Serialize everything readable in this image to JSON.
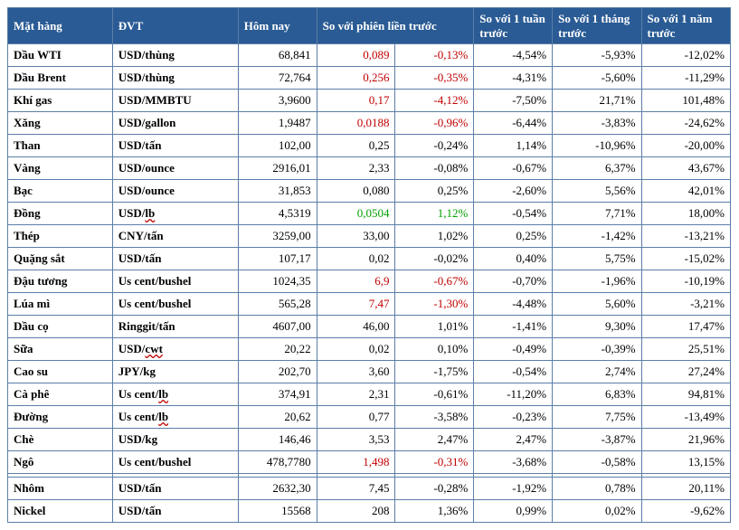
{
  "columns": {
    "c0": "Mặt hàng",
    "c1": "ĐVT",
    "c2": "Hôm nay",
    "c3": "So với phiên liền trước",
    "c4": "So với 1 tuần trước",
    "c5": "So với 1 tháng trước",
    "c6": "So với 1 năm trước"
  },
  "rows": [
    {
      "name": "Dầu WTI",
      "unit": "USD/thùng",
      "today": "68,841",
      "d1": "0,089",
      "d1c": "neg",
      "d2": "-0,13%",
      "d2c": "neg",
      "w": "-4,54%",
      "m": "-5,93%",
      "y": "-12,02%"
    },
    {
      "name": "Dầu Brent",
      "unit": "USD/thùng",
      "today": "72,764",
      "d1": "0,256",
      "d1c": "neg",
      "d2": "-0,35%",
      "d2c": "neg",
      "w": "-4,31%",
      "m": "-5,60%",
      "y": "-11,29%"
    },
    {
      "name": "Khí gas",
      "unit": "USD/MMBTU",
      "today": "3,9600",
      "d1": "0,17",
      "d1c": "neg",
      "d2": "-4,12%",
      "d2c": "neg",
      "w": "-7,50%",
      "m": "21,71%",
      "y": "101,48%"
    },
    {
      "name": "Xăng",
      "unit": "USD/gallon",
      "today": "1,9487",
      "d1": "0,0188",
      "d1c": "neg",
      "d2": "-0,96%",
      "d2c": "neg",
      "w": "-6,44%",
      "m": "-3,83%",
      "y": "-24,62%"
    },
    {
      "name": "Than",
      "unit": "USD/tấn",
      "today": "102,00",
      "d1": "0,25",
      "d1c": "",
      "d2": "-0,24%",
      "d2c": "",
      "w": "1,14%",
      "m": "-10,96%",
      "y": "-20,00%"
    },
    {
      "name": "Vàng",
      "unit": "USD/ounce",
      "today": "2916,01",
      "d1": "2,33",
      "d1c": "",
      "d2": "-0,08%",
      "d2c": "",
      "w": "-0,67%",
      "m": "6,37%",
      "y": "43,67%"
    },
    {
      "name": "Bạc",
      "unit": "USD/ounce",
      "today": "31,853",
      "d1": "0,080",
      "d1c": "",
      "d2": "0,25%",
      "d2c": "",
      "w": "-2,60%",
      "m": "5,56%",
      "y": "42,01%"
    },
    {
      "name": "Đồng",
      "unit": "USD/lb",
      "unitWavy": true,
      "today": "4,5319",
      "d1": "0,0504",
      "d1c": "pos",
      "d2": "1,12%",
      "d2c": "pos",
      "w": "-0,54%",
      "m": "7,71%",
      "y": "18,00%"
    },
    {
      "name": "Thép",
      "unit": "CNY/tấn",
      "today": "3259,00",
      "d1": "33,00",
      "d1c": "",
      "d2": "1,02%",
      "d2c": "",
      "w": "0,25%",
      "m": "-1,42%",
      "y": "-13,21%"
    },
    {
      "name": "Quặng sắt",
      "unit": "USD/tấn",
      "today": "107,17",
      "d1": "0,02",
      "d1c": "",
      "d2": "-0,02%",
      "d2c": "",
      "w": "0,40%",
      "m": "5,75%",
      "y": "-15,02%"
    },
    {
      "name": "Đậu tương",
      "unit": "Us cent/bushel",
      "today": "1024,35",
      "d1": "6,9",
      "d1c": "neg",
      "d2": "-0,67%",
      "d2c": "neg",
      "w": "-0,70%",
      "m": "-1,96%",
      "y": "-10,19%"
    },
    {
      "name": "Lúa mì",
      "unit": "Us cent/bushel",
      "today": "565,28",
      "d1": "7,47",
      "d1c": "neg",
      "d2": "-1,30%",
      "d2c": "neg",
      "w": "-4,48%",
      "m": "5,60%",
      "y": "-3,21%"
    },
    {
      "name": "Dầu cọ",
      "unit": "Ringgit/tấn",
      "today": "4607,00",
      "d1": "46,00",
      "d1c": "",
      "d2": "1,01%",
      "d2c": "",
      "w": "-1,41%",
      "m": "9,30%",
      "y": "17,47%"
    },
    {
      "name": "Sữa",
      "unit": "USD/cwt",
      "unitWavy": true,
      "today": "20,22",
      "d1": "0,02",
      "d1c": "",
      "d2": "0,10%",
      "d2c": "",
      "w": "-0,49%",
      "m": "-0,39%",
      "y": "25,51%"
    },
    {
      "name": "Cao su",
      "unit": "JPY/kg",
      "today": "202,70",
      "d1": "3,60",
      "d1c": "",
      "d2": "-1,75%",
      "d2c": "",
      "w": "-0,54%",
      "m": "2,74%",
      "y": "27,24%"
    },
    {
      "name": "Cà phê",
      "unit": "Us cent/lb",
      "unitWavy": true,
      "today": "374,91",
      "d1": "2,31",
      "d1c": "",
      "d2": "-0,61%",
      "d2c": "",
      "w": "-11,20%",
      "m": "6,83%",
      "y": "94,81%"
    },
    {
      "name": "Đường",
      "unit": "Us cent/lb",
      "unitWavy": true,
      "today": "20,62",
      "d1": "0,77",
      "d1c": "",
      "d2": "-3,58%",
      "d2c": "",
      "w": "-0,23%",
      "m": "7,75%",
      "y": "-13,49%"
    },
    {
      "name": "Chè",
      "unit": "USD/kg",
      "today": "146,46",
      "d1": "3,53",
      "d1c": "",
      "d2": "2,47%",
      "d2c": "",
      "w": "2,47%",
      "m": "-3,87%",
      "y": "21,96%"
    },
    {
      "name": "Ngô",
      "unit": "Us cent/bushel",
      "today": "478,7780",
      "d1": "1,498",
      "d1c": "neg",
      "d2": "-0,31%",
      "d2c": "neg",
      "w": "-3,68%",
      "m": "-0,58%",
      "y": "13,15%"
    },
    {
      "spacer": true
    },
    {
      "name": "Nhôm",
      "unit": "USD/tấn",
      "today": "2632,30",
      "d1": "7,45",
      "d1c": "",
      "d2": "-0,28%",
      "d2c": "",
      "w": "-1,92%",
      "m": "0,78%",
      "y": "20,11%"
    },
    {
      "name": "Nickel",
      "unit": "USD/tấn",
      "today": "15568",
      "d1": "208",
      "d1c": "",
      "d2": "1,36%",
      "d2c": "",
      "w": "0,99%",
      "m": "0,02%",
      "y": "-9,62%"
    }
  ]
}
